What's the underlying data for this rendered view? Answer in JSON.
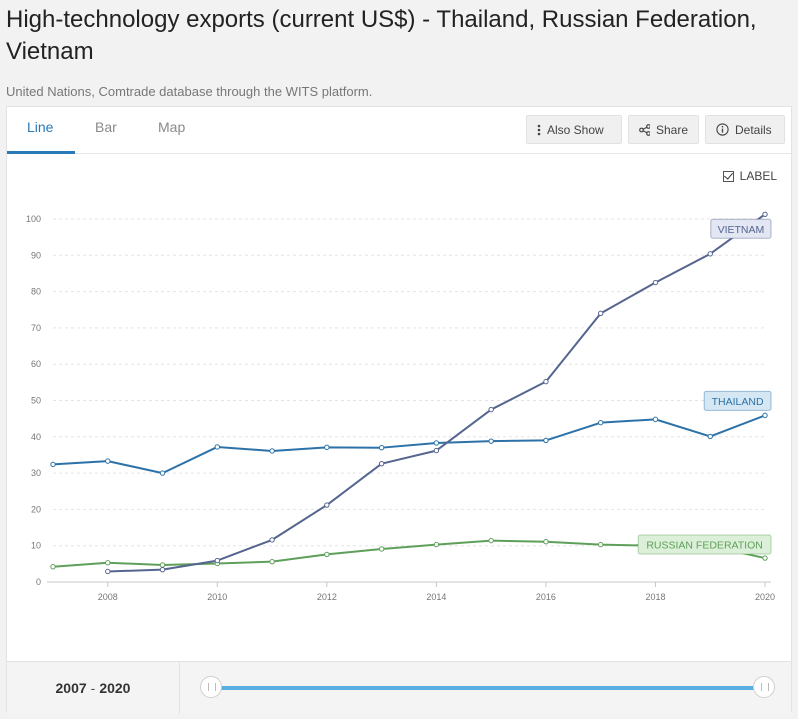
{
  "title": "High-technology exports (current US$) - Thailand, Russian Federation, Vietnam",
  "subtitle": "United Nations, Comtrade database through the WITS platform.",
  "tabs": [
    {
      "label": "Line",
      "active": true
    },
    {
      "label": "Bar",
      "active": false
    },
    {
      "label": "Map",
      "active": false
    }
  ],
  "toolbar": {
    "also_show_label": "Also Show",
    "share_label": "Share",
    "details_label": "Details"
  },
  "label_toggle": {
    "label": "LABEL",
    "checked": true
  },
  "footer": {
    "range_start": "2007",
    "range_sep": "-",
    "range_end": "2020"
  },
  "colors": {
    "thailand": "#2c72a8",
    "russia": "#5ea05a",
    "vietnam": "#55658f",
    "accent": "#2a7ab8",
    "slider": "#5aaee0"
  },
  "chart_data": {
    "type": "line",
    "title": "",
    "xlabel": "",
    "ylabel": "",
    "x": [
      2007,
      2008,
      2009,
      2010,
      2011,
      2012,
      2013,
      2014,
      2015,
      2016,
      2017,
      2018,
      2019,
      2020
    ],
    "xlim": [
      2007,
      2020
    ],
    "ylim": [
      0,
      100
    ],
    "x_ticks": [
      "2008",
      "2010",
      "2012",
      "2014",
      "2016",
      "2018",
      "2020"
    ],
    "y_ticks": [
      "0",
      "10",
      "20",
      "30",
      "40",
      "50",
      "60",
      "70",
      "80",
      "90",
      "100"
    ],
    "grid": "horizontal dashed",
    "series": [
      {
        "name": "THAILAND",
        "color": "#2c72a8",
        "values": [
          32.4,
          33.3,
          30.0,
          37.2,
          36.1,
          37.1,
          37.0,
          38.3,
          38.8,
          39.0,
          43.9,
          44.8,
          40.1,
          45.9
        ],
        "label_fill": "#d6e7f4"
      },
      {
        "name": "RUSSIAN FEDERATION",
        "color": "#5ea05a",
        "values": [
          4.2,
          5.3,
          4.7,
          5.1,
          5.6,
          7.6,
          9.1,
          10.3,
          11.4,
          11.1,
          10.3,
          10.0,
          9.9,
          6.6
        ],
        "label_fill": "#dcefd8"
      },
      {
        "name": "VIETNAM",
        "color": "#55658f",
        "values": [
          null,
          2.9,
          3.4,
          5.9,
          11.6,
          21.2,
          32.6,
          36.2,
          47.5,
          55.2,
          74.0,
          82.5,
          90.4,
          101.3
        ],
        "label_fill": "#e3e6f3"
      }
    ]
  }
}
